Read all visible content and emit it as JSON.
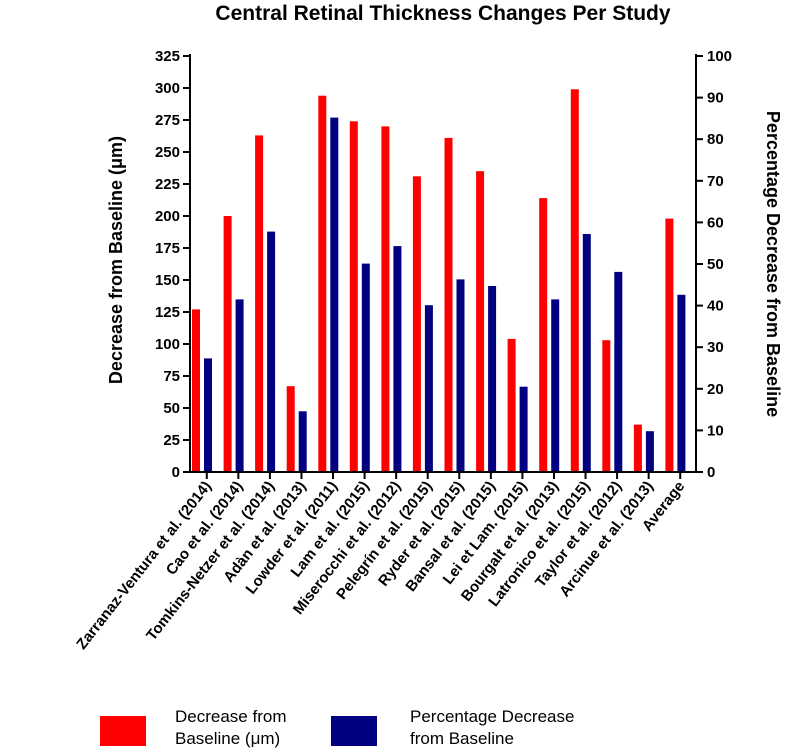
{
  "chart_data": {
    "type": "bar",
    "title": "Central Retinal Thickness Changes Per Study",
    "ylabel": "Decrease from Baseline (μm)",
    "y2label": "Percentage Decrease from Baseline",
    "ylim": [
      0,
      325
    ],
    "y2lim": [
      0,
      100
    ],
    "yticks": [
      0,
      25,
      50,
      75,
      100,
      125,
      150,
      175,
      200,
      225,
      250,
      275,
      300,
      325
    ],
    "y2ticks": [
      0,
      10,
      20,
      30,
      40,
      50,
      60,
      70,
      80,
      90,
      100
    ],
    "grid": false,
    "legend_position": "bottom",
    "categories": [
      "Zarranaz-Ventura et al. (2014)",
      "Cao et al. (2014)",
      "Tomkins-Netzer et al. (2014)",
      "Adàn et al. (2013)",
      "Lowder et al. (2011)",
      "Lam et al. (2015)",
      "Miserocchi et al. (2012)",
      "Pelegrín et al. (2015)",
      "Ryder et al. (2015)",
      "Bansal et al. (2015)",
      "Lei et Lam. (2015)",
      "Bourgalt et al. (2013)",
      "Latronico et al. (2015)",
      "Taylor et al. (2012)",
      "Arcinue et al. (2013)",
      "Average"
    ],
    "series": [
      {
        "name": "Decrease from Baseline (μm)",
        "axis": "left",
        "color": "#ff0000",
        "values": [
          127,
          200,
          263,
          67,
          294,
          274,
          270,
          231,
          261,
          235,
          104,
          214,
          299,
          103,
          37,
          198
        ]
      },
      {
        "name": "Percentage Decrease from Baseline",
        "axis": "right",
        "color": "#000080",
        "values": [
          27.3,
          41.5,
          57.8,
          14.6,
          85.2,
          50.1,
          54.3,
          40.1,
          46.3,
          44.7,
          20.5,
          41.5,
          57.2,
          48.1,
          9.8,
          42.6
        ]
      }
    ]
  }
}
